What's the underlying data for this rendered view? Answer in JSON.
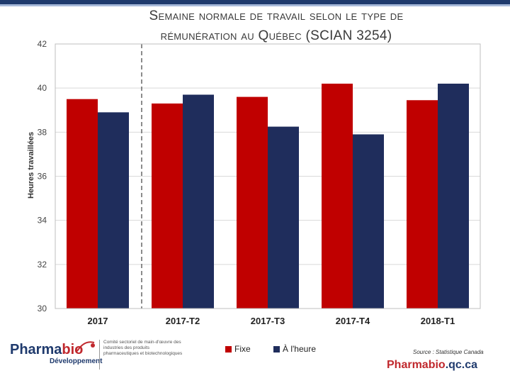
{
  "title_line1": "Semaine normale de travail selon le type de",
  "title_line2": "rémunération au Québec (SCIAN 3254)",
  "chart_data": {
    "type": "bar",
    "title": "Semaine normale de travail selon le type de rémunération au Québec (SCIAN 3254)",
    "ylabel": "Heures travaillées",
    "xlabel": "",
    "categories": [
      "2017",
      "2017-T2",
      "2017-T3",
      "2017-T4",
      "2018-T1"
    ],
    "series": [
      {
        "name": "Fixe",
        "color": "#c00000",
        "values": [
          39.5,
          39.3,
          39.6,
          40.2,
          39.45
        ]
      },
      {
        "name": "À l'heure",
        "color": "#1f2d5c",
        "values": [
          38.9,
          39.7,
          38.25,
          37.9,
          40.2
        ]
      }
    ],
    "ylim": [
      30,
      42
    ],
    "yticks": [
      30,
      32,
      34,
      36,
      38,
      40,
      42
    ],
    "grid": true,
    "legend": "bottom"
  },
  "source": "Source : Statistique Canada",
  "site": {
    "part1": "Pharmabio",
    "part2": ".qc.ca"
  },
  "logo": {
    "name_part1": "Pharma",
    "name_part2": "bio",
    "subtitle": "Développement",
    "text": "Comité sectoriel de main-d'œuvre des industries des produits pharmaceutiques et biotechnologiques"
  }
}
